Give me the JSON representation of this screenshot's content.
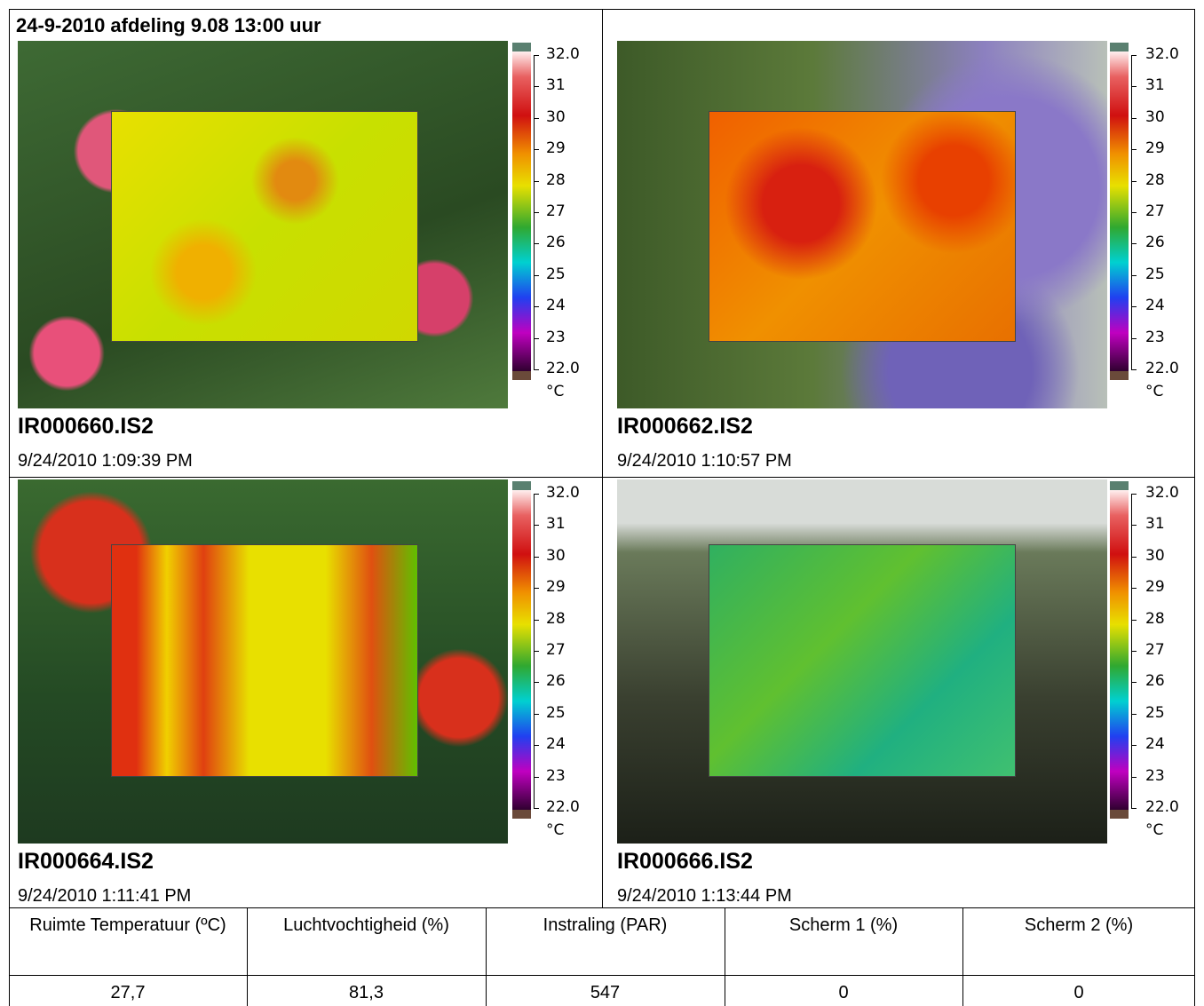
{
  "header": {
    "title": "24-9-2010 afdeling 9.08 13:00 uur"
  },
  "panels": [
    {
      "filename": "IR000660.IS2",
      "datetime": "9/24/2010 1:09:39 PM"
    },
    {
      "filename": "IR000662.IS2",
      "datetime": "9/24/2010 1:10:57 PM"
    },
    {
      "filename": "IR000664.IS2",
      "datetime": "9/24/2010 1:11:41 PM"
    },
    {
      "filename": "IR000666.IS2",
      "datetime": "9/24/2010 1:13:44 PM"
    }
  ],
  "color_scale": {
    "ticks": [
      "32.0",
      "31",
      "30",
      "29",
      "28",
      "27",
      "26",
      "25",
      "24",
      "23",
      "22.0"
    ],
    "unit": "°C"
  },
  "table": {
    "headers": [
      "Ruimte Temperatuur (ºC)",
      "Luchtvochtigheid (%)",
      "Instraling (PAR)",
      "Scherm 1 (%)",
      "Scherm 2 (%)"
    ],
    "rows": [
      [
        "27,7",
        "81,3",
        "547",
        "0",
        "0"
      ]
    ]
  }
}
